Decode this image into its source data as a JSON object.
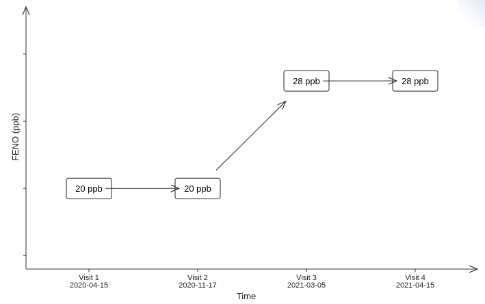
{
  "chart_data": {
    "type": "line",
    "xlabel": "Time",
    "ylabel": "FENO (ppb)",
    "categories": [
      {
        "visit": "Visit 1",
        "date": "2020-04-15"
      },
      {
        "visit": "Visit 2",
        "date": "2020-11-17"
      },
      {
        "visit": "Visit 3",
        "date": "2021-03-05"
      },
      {
        "visit": "Visit 4",
        "date": "2021-04-15"
      }
    ],
    "values": [
      20,
      20,
      28,
      28
    ],
    "value_labels": [
      "20 ppb",
      "20 ppb",
      "28 ppb",
      "28 ppb"
    ],
    "ylim": [
      14,
      33
    ],
    "y_ticks": [
      15,
      20,
      25,
      30
    ],
    "y_tick_labels_shown": false,
    "grid": false,
    "legend": "none",
    "colors": {
      "axis": "#333333",
      "line": "#222222",
      "box_fill": "#ffffff"
    }
  }
}
